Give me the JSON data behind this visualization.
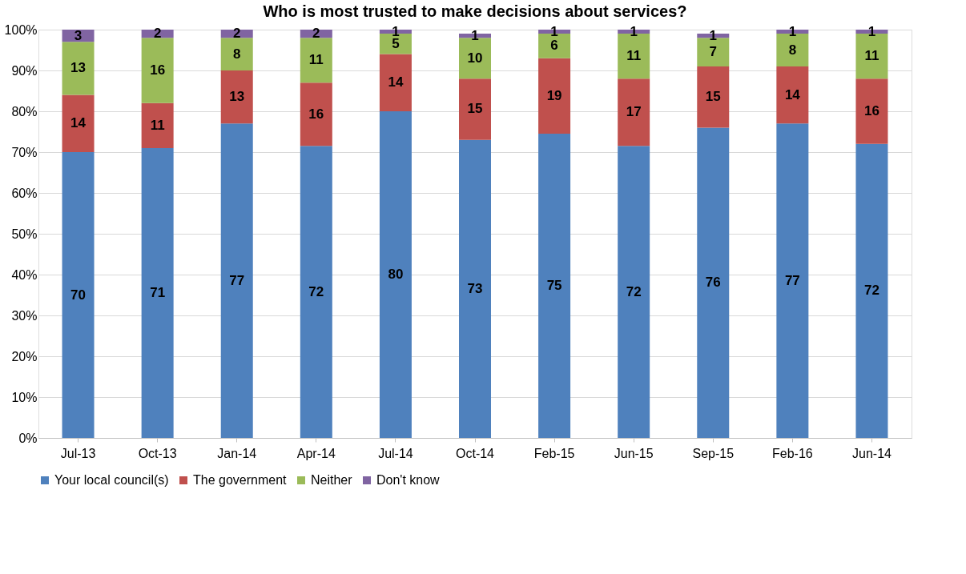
{
  "chart_data": {
    "type": "bar",
    "stacked": true,
    "title": "Who is most trusted to make decisions about services?",
    "categories": [
      "Jul-13",
      "Oct-13",
      "Jan-14",
      "Apr-14",
      "Jul-14",
      "Oct-14",
      "Feb-15",
      "Jun-15",
      "Sep-15",
      "Feb-16",
      "Jun-14"
    ],
    "series": [
      {
        "name": "Your local council(s)",
        "color": "#4f81bd",
        "values": [
          70,
          71,
          77,
          71.5,
          80,
          73,
          74.5,
          71.5,
          76,
          77,
          72
        ],
        "value_labels": [
          "70",
          "71",
          "77",
          "72",
          "80",
          "73",
          "75",
          "72",
          "76",
          "77",
          "72"
        ]
      },
      {
        "name": "The government",
        "color": "#c0504d",
        "values": [
          14,
          11,
          13,
          15.5,
          14,
          15,
          18.5,
          16.5,
          15,
          14,
          16
        ],
        "value_labels": [
          "14",
          "11",
          "13",
          "16",
          "14",
          "15",
          "19",
          "17",
          "15",
          "14",
          "16"
        ]
      },
      {
        "name": "Neither",
        "color": "#9bbb59",
        "values": [
          13,
          16,
          8,
          11,
          5,
          10,
          6,
          11,
          7,
          8,
          11
        ],
        "value_labels": [
          "13",
          "16",
          "8",
          "11",
          "5",
          "10",
          "6",
          "11",
          "7",
          "8",
          "11"
        ]
      },
      {
        "name": "Don't know",
        "color": "#8064a2",
        "values": [
          3,
          2,
          2,
          2,
          1,
          1,
          1,
          1,
          1,
          1,
          1
        ],
        "value_labels": [
          "3",
          "2",
          "2",
          "2",
          "1",
          "1",
          "1",
          "1",
          "1",
          "1",
          "1"
        ]
      }
    ],
    "ylim": [
      0,
      100
    ],
    "yticks": [
      {
        "value": 0,
        "label": "0%"
      },
      {
        "value": 10,
        "label": "10%"
      },
      {
        "value": 20,
        "label": "20%"
      },
      {
        "value": 30,
        "label": "30%"
      },
      {
        "value": 40,
        "label": "40%"
      },
      {
        "value": 50,
        "label": "50%"
      },
      {
        "value": 60,
        "label": "60%"
      },
      {
        "value": 70,
        "label": "70%"
      },
      {
        "value": 80,
        "label": "80%"
      },
      {
        "value": 90,
        "label": "90%"
      },
      {
        "value": 100,
        "label": "100%"
      }
    ],
    "grid": "y",
    "legend": "bottom"
  }
}
